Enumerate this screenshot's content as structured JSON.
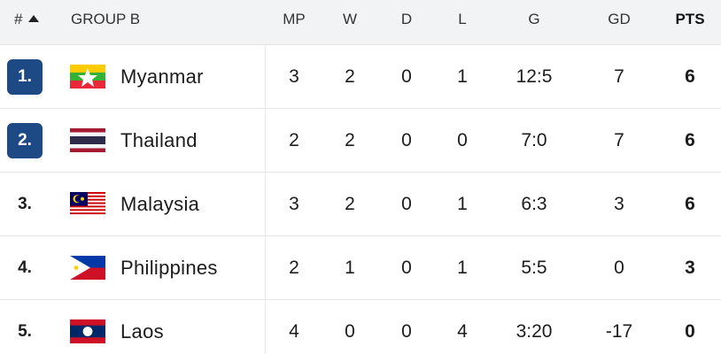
{
  "header": {
    "rank": "#",
    "group": "GROUP B",
    "columns": [
      "MP",
      "W",
      "D",
      "L",
      "G",
      "GD",
      "PTS"
    ]
  },
  "rows": [
    {
      "rank": "1.",
      "team": "Myanmar",
      "stats": [
        3,
        2,
        0,
        1,
        "12:5",
        7,
        6
      ]
    },
    {
      "rank": "2.",
      "team": "Thailand",
      "stats": [
        2,
        2,
        0,
        0,
        "7:0",
        7,
        6
      ]
    },
    {
      "rank": "3.",
      "team": "Malaysia",
      "stats": [
        3,
        2,
        0,
        1,
        "6:3",
        3,
        6
      ]
    },
    {
      "rank": "4.",
      "team": "Philippines",
      "stats": [
        2,
        1,
        0,
        1,
        "5:5",
        0,
        3
      ]
    },
    {
      "rank": "5.",
      "team": "Laos",
      "stats": [
        4,
        0,
        0,
        4,
        "3:20",
        -17,
        0
      ]
    }
  ]
}
